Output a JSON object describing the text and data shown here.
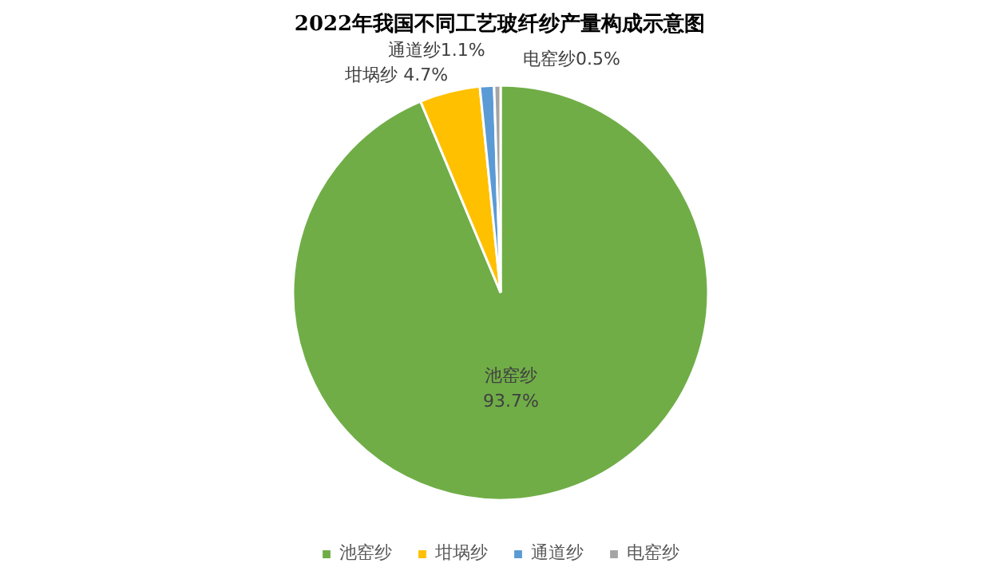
{
  "chart_data": {
    "type": "pie",
    "title": "2022年我国不同工艺玻纤纱产量构成示意图",
    "categories": [
      "池窑纱",
      "坩埚纱",
      "通道纱",
      "电窑纱"
    ],
    "values": [
      93.7,
      4.7,
      1.1,
      0.5
    ],
    "colors": [
      "#70ad47",
      "#ffc000",
      "#5b9bd5",
      "#a5a5a5"
    ],
    "value_labels": [
      "93.7%",
      "4.7%",
      "1.1%",
      "0.5%"
    ],
    "legend": "bottom"
  }
}
